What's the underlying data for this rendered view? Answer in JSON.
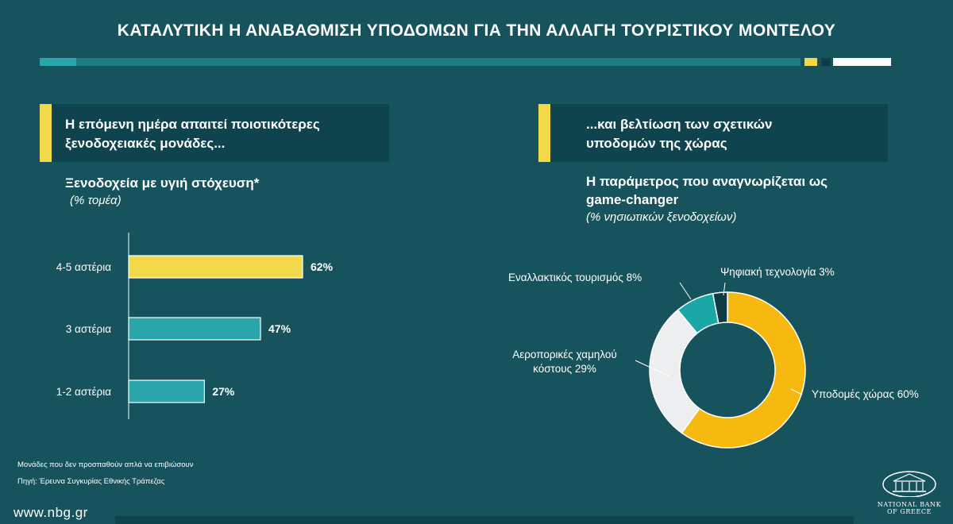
{
  "header": {
    "title": "ΚΑΤΑΛΥΤΙΚΗ Η ΑΝΑΒΑΘΜΙΣΗ ΥΠΟΔΟΜΩΝ ΓΙΑ ΤΗΝ ΑΛΛΑΓΗ ΤΟΥΡΙΣΤΙΚΟΥ ΜΟΝΤΕΛΟΥ"
  },
  "left_panel": {
    "line1": "Η επόμενη ημέρα απαιτεί ποιοτικότερες",
    "line2": "ξενοδοχειακές μονάδες...",
    "subtitle": "Ξενοδοχεία με υγιή στόχευση*",
    "unit": "(% τομέα)"
  },
  "right_panel": {
    "line1": "...και βελτίωση των σχετικών",
    "line2": "υποδομών της χώρας",
    "subtitle_line1": "Η παράμετρος που  αναγνωρίζεται ως",
    "subtitle_line2": "game-changer",
    "unit": "(% νησιωτικών ξενοδοχείων)"
  },
  "footer": {
    "note": "Μονάδες που δεν προσπαθούν απλά να επιβιώσουν",
    "source": "Πηγή: Έρευνα Συγκυρίας Εθνικής Τράπεζας",
    "website": "www.nbg.gr",
    "logo_line1": "NATIONAL BANK",
    "logo_line2": "OF GREECE"
  },
  "colors": {
    "background": "#16535d",
    "yellow": "#f3d84a",
    "teal": "#2aa5a9",
    "donut_yellow": "#f6b90f",
    "donut_light": "#eceeef",
    "donut_teal": "#1ba7a6",
    "donut_dark": "#0e3b44"
  },
  "chart_data": [
    {
      "type": "bar",
      "orientation": "horizontal",
      "categories": [
        "4-5 αστέρια",
        "3 αστέρια",
        "1-2 αστέρια"
      ],
      "values": [
        62,
        47,
        27
      ],
      "value_labels": [
        "62%",
        "47%",
        "27%"
      ],
      "bar_colors": [
        "#f3d84a",
        "#2aa5a9",
        "#2aa5a9"
      ],
      "xlim": [
        0,
        100
      ],
      "title": "Ξενοδοχεία με υγιή στόχευση*",
      "unit": "(% τομέα)"
    },
    {
      "type": "pie",
      "donut": true,
      "slices": [
        {
          "label": "Υποδομές χώρας 60%",
          "value": 60,
          "color": "#f6b90f"
        },
        {
          "label": "Αεροπορικές χαμηλού κόστους 29%",
          "value": 29,
          "color": "#eceeef"
        },
        {
          "label": "Εναλλακτικός τουρισμός 8%",
          "value": 8,
          "color": "#1ba7a6"
        },
        {
          "label": "Ψηφιακή τεχνολογία 3%",
          "value": 3,
          "color": "#0e3b44"
        }
      ],
      "title": "Η παράμετρος που  αναγνωρίζεται ως game-changer",
      "unit": "(% νησιωτικών ξενοδοχείων)"
    }
  ]
}
